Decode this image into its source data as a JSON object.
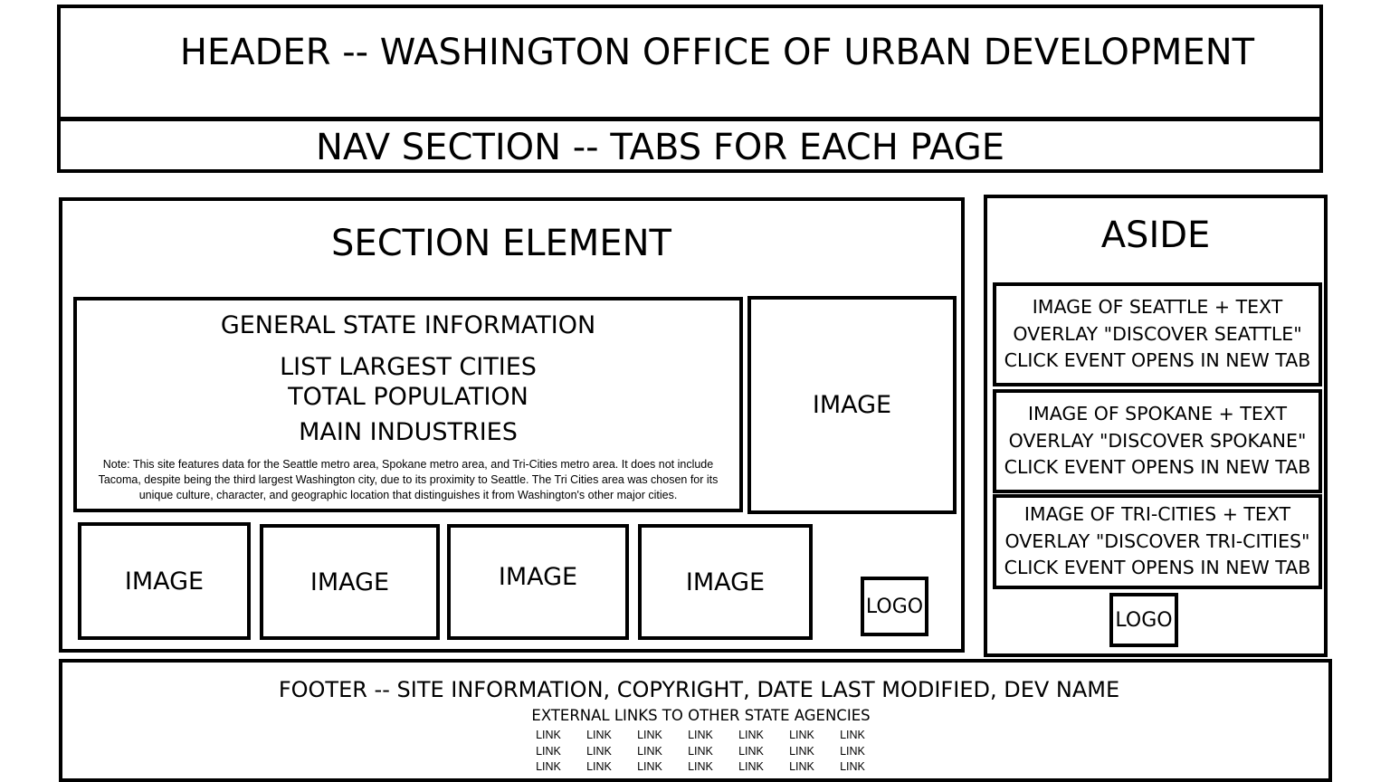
{
  "header": {
    "title": "HEADER -- WASHINGTON OFFICE OF URBAN DEVELOPMENT"
  },
  "nav": {
    "title": "NAV SECTION -- TABS FOR EACH PAGE"
  },
  "section": {
    "title": "SECTION ELEMENT",
    "info": {
      "title": "GENERAL STATE INFORMATION",
      "lines": [
        "LIST LARGEST CITIES",
        "TOTAL POPULATION",
        "MAIN INDUSTRIES"
      ],
      "note": "Note: This site features data for the Seattle metro area, Spokane metro area, and Tri-Cities metro area. It does not include Tacoma, despite being the third largest Washington city, due to its proximity to Seattle. The Tri Cities area was chosen for its unique culture, character, and geographic location that distinguishes it from Washington's other major cities."
    },
    "main_image_label": "IMAGE",
    "images": [
      "IMAGE",
      "IMAGE",
      "IMAGE",
      "IMAGE"
    ],
    "logo": "LOGO"
  },
  "aside": {
    "title": "ASIDE",
    "cards": [
      [
        "IMAGE OF SEATTLE + TEXT",
        "OVERLAY \"DISCOVER SEATTLE\"",
        "CLICK EVENT OPENS IN NEW TAB"
      ],
      [
        "IMAGE OF SPOKANE + TEXT",
        "OVERLAY \"DISCOVER SPOKANE\"",
        "CLICK EVENT OPENS IN NEW TAB"
      ],
      [
        "IMAGE OF TRI-CITIES + TEXT",
        "OVERLAY \"DISCOVER TRI-CITIES\"",
        "CLICK EVENT OPENS IN NEW TAB"
      ]
    ],
    "logo": "LOGO"
  },
  "footer": {
    "title": "FOOTER -- SITE INFORMATION, COPYRIGHT, DATE LAST MODIFIED, DEV NAME",
    "subtitle": "EXTERNAL LINKS TO OTHER STATE AGENCIES",
    "links": [
      [
        "LINK",
        "LINK",
        "LINK",
        "LINK",
        "LINK",
        "LINK",
        "LINK"
      ],
      [
        "LINK",
        "LINK",
        "LINK",
        "LINK",
        "LINK",
        "LINK",
        "LINK"
      ],
      [
        "LINK",
        "LINK",
        "LINK",
        "LINK",
        "LINK",
        "LINK",
        "LINK"
      ]
    ]
  }
}
